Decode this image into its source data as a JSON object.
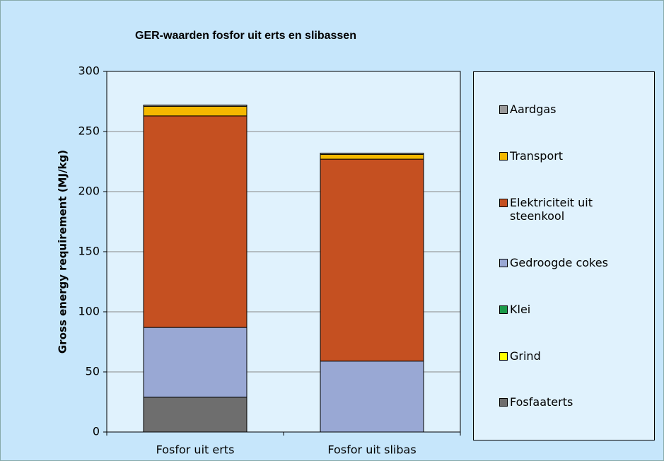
{
  "chart_data": {
    "type": "stacked_bar",
    "title": "GER-waarden fosfor uit erts en slibassen",
    "y_label": "Gross energy requirement (MJ/kg)",
    "categories": [
      "Fosfor uit erts",
      "Fosfor uit slibas"
    ],
    "series": [
      {
        "name": "Fosfaaterts",
        "color": "#6e6e6e",
        "values": [
          29,
          0
        ]
      },
      {
        "name": "Grind",
        "color": "#ffff00",
        "values": [
          0,
          0
        ]
      },
      {
        "name": "Klei",
        "color": "#1a9a48",
        "values": [
          0,
          0
        ]
      },
      {
        "name": "Gedroogde cokes",
        "color": "#99a8d4",
        "values": [
          58,
          59
        ]
      },
      {
        "name": "Elektriciteit uit steenkool",
        "color": "#c55021",
        "values": [
          176,
          168
        ]
      },
      {
        "name": "Transport",
        "color": "#f5b800",
        "values": [
          8,
          4
        ]
      },
      {
        "name": "Aardgas",
        "color": "#9a9a9a",
        "values": [
          1,
          1
        ]
      }
    ],
    "ylim": [
      0,
      300
    ],
    "yticks": [
      0,
      50,
      100,
      150,
      200,
      250,
      300
    ],
    "grid": true,
    "legend": "right"
  }
}
